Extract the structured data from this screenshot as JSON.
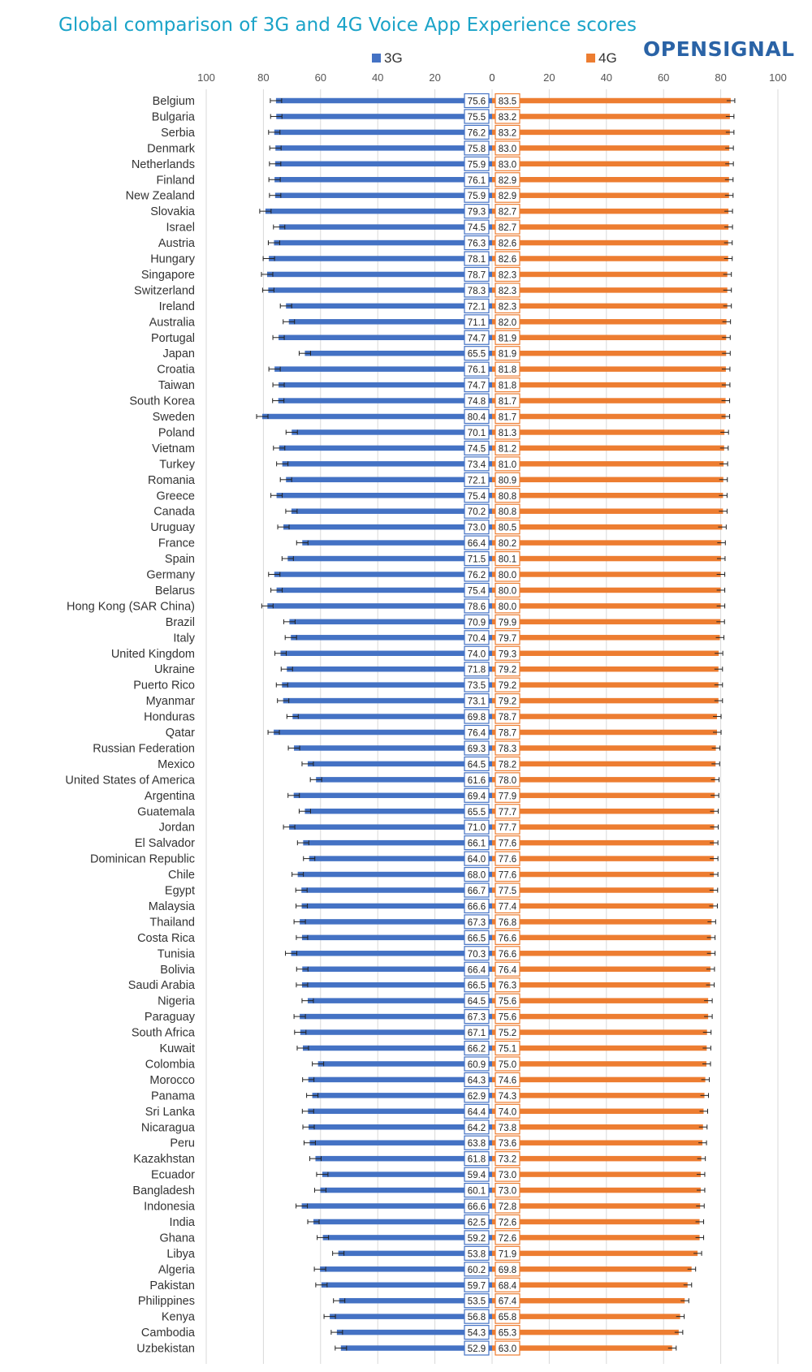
{
  "header": {
    "title": "Global comparison of 3G and 4G Voice App Experience scores",
    "brand": "OPENSIGNAL"
  },
  "colors": {
    "series_3g": "#4472c4",
    "series_4g": "#ed7d31",
    "title": "#1aa3c8",
    "brand": "#2a63a6",
    "grid": "#d9d9d9"
  },
  "chart_data": {
    "type": "bar",
    "orientation": "horizontal-butterfly",
    "title": "Global comparison of 3G and 4G Voice App Experience scores",
    "axis_left": {
      "ticks": [
        "100",
        "80",
        "60",
        "40",
        "20",
        "0"
      ],
      "range": [
        100,
        0
      ]
    },
    "axis_right": {
      "ticks": [
        "0",
        "20",
        "40",
        "60",
        "80",
        "100"
      ],
      "range": [
        0,
        100
      ]
    },
    "grid": true,
    "legend_position": "top",
    "error_bars": true,
    "categories": [
      "Belgium",
      "Bulgaria",
      "Serbia",
      "Denmark",
      "Netherlands",
      "Finland",
      "New Zealand",
      "Slovakia",
      "Israel",
      "Austria",
      "Hungary",
      "Singapore",
      "Switzerland",
      "Ireland",
      "Australia",
      "Portugal",
      "Japan",
      "Croatia",
      "Taiwan",
      "South Korea",
      "Sweden",
      "Poland",
      "Vietnam",
      "Turkey",
      "Romania",
      "Greece",
      "Canada",
      "Uruguay",
      "France",
      "Spain",
      "Germany",
      "Belarus",
      "Hong Kong (SAR China)",
      "Brazil",
      "Italy",
      "United Kingdom",
      "Ukraine",
      "Puerto Rico",
      "Myanmar",
      "Honduras",
      "Qatar",
      "Russian Federation",
      "Mexico",
      "United States of America",
      "Argentina",
      "Guatemala",
      "Jordan",
      "El Salvador",
      "Dominican Republic",
      "Chile",
      "Egypt",
      "Malaysia",
      "Thailand",
      "Costa Rica",
      "Tunisia",
      "Bolivia",
      "Saudi Arabia",
      "Nigeria",
      "Paraguay",
      "South Africa",
      "Kuwait",
      "Colombia",
      "Morocco",
      "Panama",
      "Sri Lanka",
      "Nicaragua",
      "Peru",
      "Kazakhstan",
      "Ecuador",
      "Bangladesh",
      "Indonesia",
      "India",
      "Ghana",
      "Libya",
      "Algeria",
      "Pakistan",
      "Philippines",
      "Kenya",
      "Cambodia",
      "Uzbekistan"
    ],
    "series": [
      {
        "name": "3G",
        "values": [
          75.6,
          75.5,
          76.2,
          75.8,
          75.9,
          76.1,
          75.9,
          79.3,
          74.5,
          76.3,
          78.1,
          78.7,
          78.3,
          72.1,
          71.1,
          74.7,
          65.5,
          76.1,
          74.7,
          74.8,
          80.4,
          70.1,
          74.5,
          73.4,
          72.1,
          75.4,
          70.2,
          73.0,
          66.4,
          71.5,
          76.2,
          75.4,
          78.6,
          70.9,
          70.4,
          74.0,
          71.8,
          73.5,
          73.1,
          69.8,
          76.4,
          69.3,
          64.5,
          61.6,
          69.4,
          65.5,
          71.0,
          66.1,
          64.0,
          68.0,
          66.7,
          66.6,
          67.3,
          66.5,
          70.3,
          66.4,
          66.5,
          64.5,
          67.3,
          67.1,
          66.2,
          60.9,
          64.3,
          62.9,
          64.4,
          64.2,
          63.8,
          61.8,
          59.4,
          60.1,
          66.6,
          62.5,
          59.2,
          53.8,
          60.2,
          59.7,
          53.5,
          56.8,
          54.3,
          52.9
        ]
      },
      {
        "name": "4G",
        "values": [
          83.5,
          83.2,
          83.2,
          83.0,
          83.0,
          82.9,
          82.9,
          82.7,
          82.7,
          82.6,
          82.6,
          82.3,
          82.3,
          82.3,
          82.0,
          81.9,
          81.9,
          81.8,
          81.8,
          81.7,
          81.7,
          81.3,
          81.2,
          81.0,
          80.9,
          80.8,
          80.8,
          80.5,
          80.2,
          80.1,
          80.0,
          80.0,
          80.0,
          79.9,
          79.7,
          79.3,
          79.2,
          79.2,
          79.2,
          78.7,
          78.7,
          78.3,
          78.2,
          78.0,
          77.9,
          77.7,
          77.7,
          77.6,
          77.6,
          77.6,
          77.5,
          77.4,
          76.8,
          76.6,
          76.6,
          76.4,
          76.3,
          75.6,
          75.6,
          75.2,
          75.1,
          75.0,
          74.6,
          74.3,
          74.0,
          73.8,
          73.6,
          73.2,
          73.0,
          73.0,
          72.8,
          72.6,
          72.6,
          71.9,
          69.8,
          68.4,
          67.4,
          65.8,
          65.3,
          63.0
        ]
      }
    ],
    "value_labels_3g": [
      "75.6",
      "75.5",
      "76.2",
      "75.8",
      "75.9",
      "76.1",
      "75.9",
      "79.3",
      "74.5",
      "76.3",
      "78.1",
      "78.7",
      "78.3",
      "72.1",
      "71.1",
      "74.7",
      "65.5",
      "76.1",
      "74.7",
      "74.8",
      "80.4",
      "70.1",
      "74.5",
      "73.4",
      "72.1",
      "75.4",
      "70.2",
      "73.0",
      "66.4",
      "71.5",
      "76.2",
      "75.4",
      "78.6",
      "70.9",
      "70.4",
      "74.0",
      "71.8",
      "73.5",
      "73.1",
      "69.8",
      "76.4",
      "69.3",
      "64.5",
      "61.6",
      "69.4",
      "65.5",
      "71.0",
      "66.1",
      "64.0",
      "68.0",
      "66.7",
      "66.6",
      "67.3",
      "66.5",
      "70.3",
      "66.4",
      "66.5",
      "64.5",
      "67.3",
      "67.1",
      "66.2",
      "60.9",
      "64.3",
      "62.9",
      "64.4",
      "64.2",
      "63.8",
      "61.8",
      "59.4",
      "60.1",
      "66.6",
      "62.5",
      "59.2",
      "53.8",
      "60.2",
      "59.7",
      "53.5",
      "56.8",
      "54.3",
      "52.9"
    ],
    "value_labels_4g": [
      "83.5",
      "83.2",
      "83.2",
      "83.0",
      "83.0",
      "82.9",
      "82.9",
      "82.7",
      "82.7",
      "82.6",
      "82.6",
      "82.3",
      "82.3",
      "82.3",
      "82.0",
      "81.9",
      "81.9",
      "81.8",
      "81.8",
      "81.7",
      "81.7",
      "81.3",
      "81.2",
      "81.0",
      "80.9",
      "80.8",
      "80.8",
      "80.5",
      "80.2",
      "80.1",
      "80.0",
      "80.0",
      "80.0",
      "79.9",
      "79.7",
      "79.3",
      "79.2",
      "79.2",
      "79.2",
      "78.7",
      "78.7",
      "78.3",
      "78.2",
      "78.0",
      "77.9",
      "77.7",
      "77.7",
      "77.6",
      "77.6",
      "77.6",
      "77.5",
      "77.4",
      "76.8",
      "76.6",
      "76.6",
      "76.4",
      "76.3",
      "75.6",
      "75.6",
      "75.2",
      "75.1",
      "75.0",
      "74.6",
      "74.3",
      "74.0",
      "73.8",
      "73.6",
      "73.2",
      "73.0",
      "73.0",
      "72.8",
      "72.6",
      "72.6",
      "71.9",
      "69.8",
      "68.4",
      "67.4",
      "65.8",
      "65.3",
      "63.0"
    ]
  }
}
